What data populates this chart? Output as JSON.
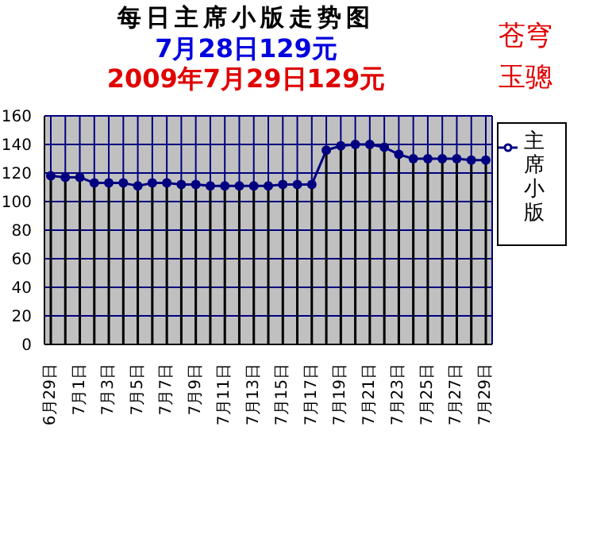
{
  "chart_data": {
    "type": "line",
    "title": "每日主席小版走势图",
    "subtitle": "7月28日129元",
    "annotations": [
      "2009年7月29日129元",
      "苍穹玉骢"
    ],
    "categories": [
      "6月29日",
      null,
      "7月1日",
      null,
      "7月3日",
      null,
      "7月5日",
      null,
      "7月7日",
      null,
      "7月9日",
      null,
      "7月11日",
      null,
      "7月13日",
      null,
      "7月15日",
      null,
      "7月17日",
      null,
      "7月19日",
      null,
      "7月21日",
      null,
      "7月23日",
      null,
      "7月25日",
      null,
      "7月27日",
      null,
      "7月29日"
    ],
    "series": [
      {
        "name": "主席小版",
        "color": "#000080",
        "values": [
          118,
          117,
          117,
          113,
          113,
          113,
          111,
          113,
          113,
          112,
          112,
          111,
          111,
          111,
          111,
          111,
          112,
          112,
          112,
          136,
          139,
          140,
          140,
          138,
          133,
          130,
          130,
          130,
          130,
          129,
          129
        ]
      }
    ],
    "ylim": [
      0,
      160
    ],
    "yticks": [
      0,
      20,
      40,
      60,
      80,
      100,
      120,
      140,
      160
    ],
    "grid": true,
    "legend": "right",
    "marker": "circle"
  }
}
